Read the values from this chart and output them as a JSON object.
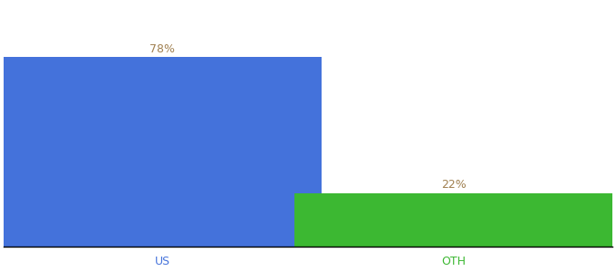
{
  "categories": [
    "US",
    "OTH"
  ],
  "values": [
    78,
    22
  ],
  "bar_colors": [
    "#4472db",
    "#3cb832"
  ],
  "label_color": "#a08050",
  "tick_color_us": "#4472db",
  "tick_color_oth": "#3cb832",
  "ylim": [
    0,
    100
  ],
  "bar_width": 0.6,
  "x_positions": [
    0.3,
    0.85
  ],
  "xlim": [
    0,
    1.15
  ],
  "label_fontsize": 9,
  "tick_fontsize": 9,
  "background_color": "#ffffff"
}
